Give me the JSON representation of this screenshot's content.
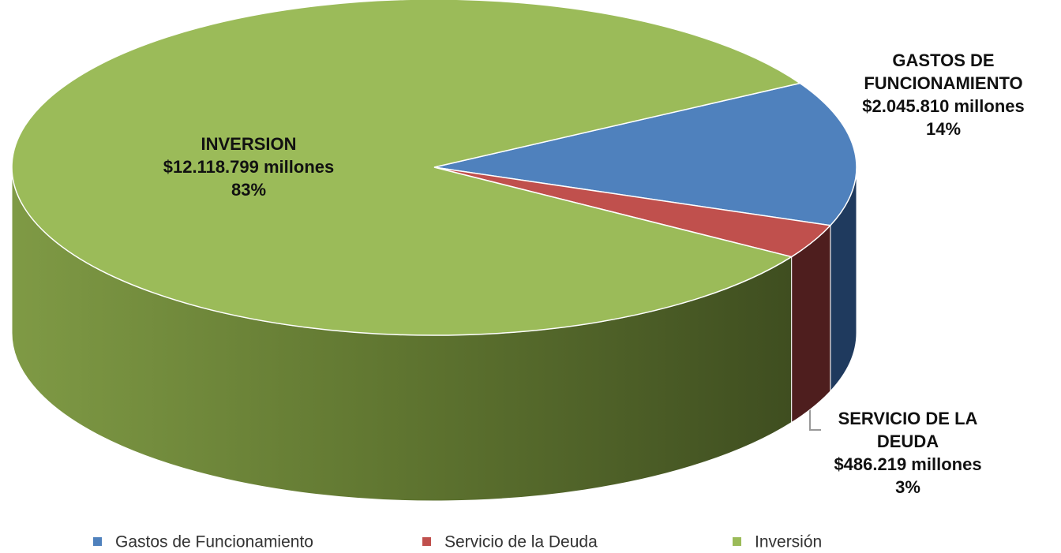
{
  "chart_data": {
    "type": "pie3d",
    "categories": [
      "Gastos de Funcionamiento",
      "Servicio de la Deuda",
      "Inversión"
    ],
    "label_names": [
      "GASTOS DE FUNCIONAMIENTO",
      "SERVICIO DE LA DEUDA",
      "INVERSION"
    ],
    "amounts": [
      2045810,
      486219,
      12118799
    ],
    "amount_labels": [
      "$2.045.810 millones",
      "$486.219 millones",
      "$12.118.799 millones"
    ],
    "values": [
      14,
      3,
      83
    ],
    "value_labels": [
      "14%",
      "3%",
      "83%"
    ],
    "colors": [
      "#4f81bd",
      "#c0504d",
      "#9bbb59"
    ],
    "side_colors": [
      "#1f3a5e",
      "#4e1e1e",
      "#5b6f2c"
    ],
    "legend": "bottom"
  }
}
